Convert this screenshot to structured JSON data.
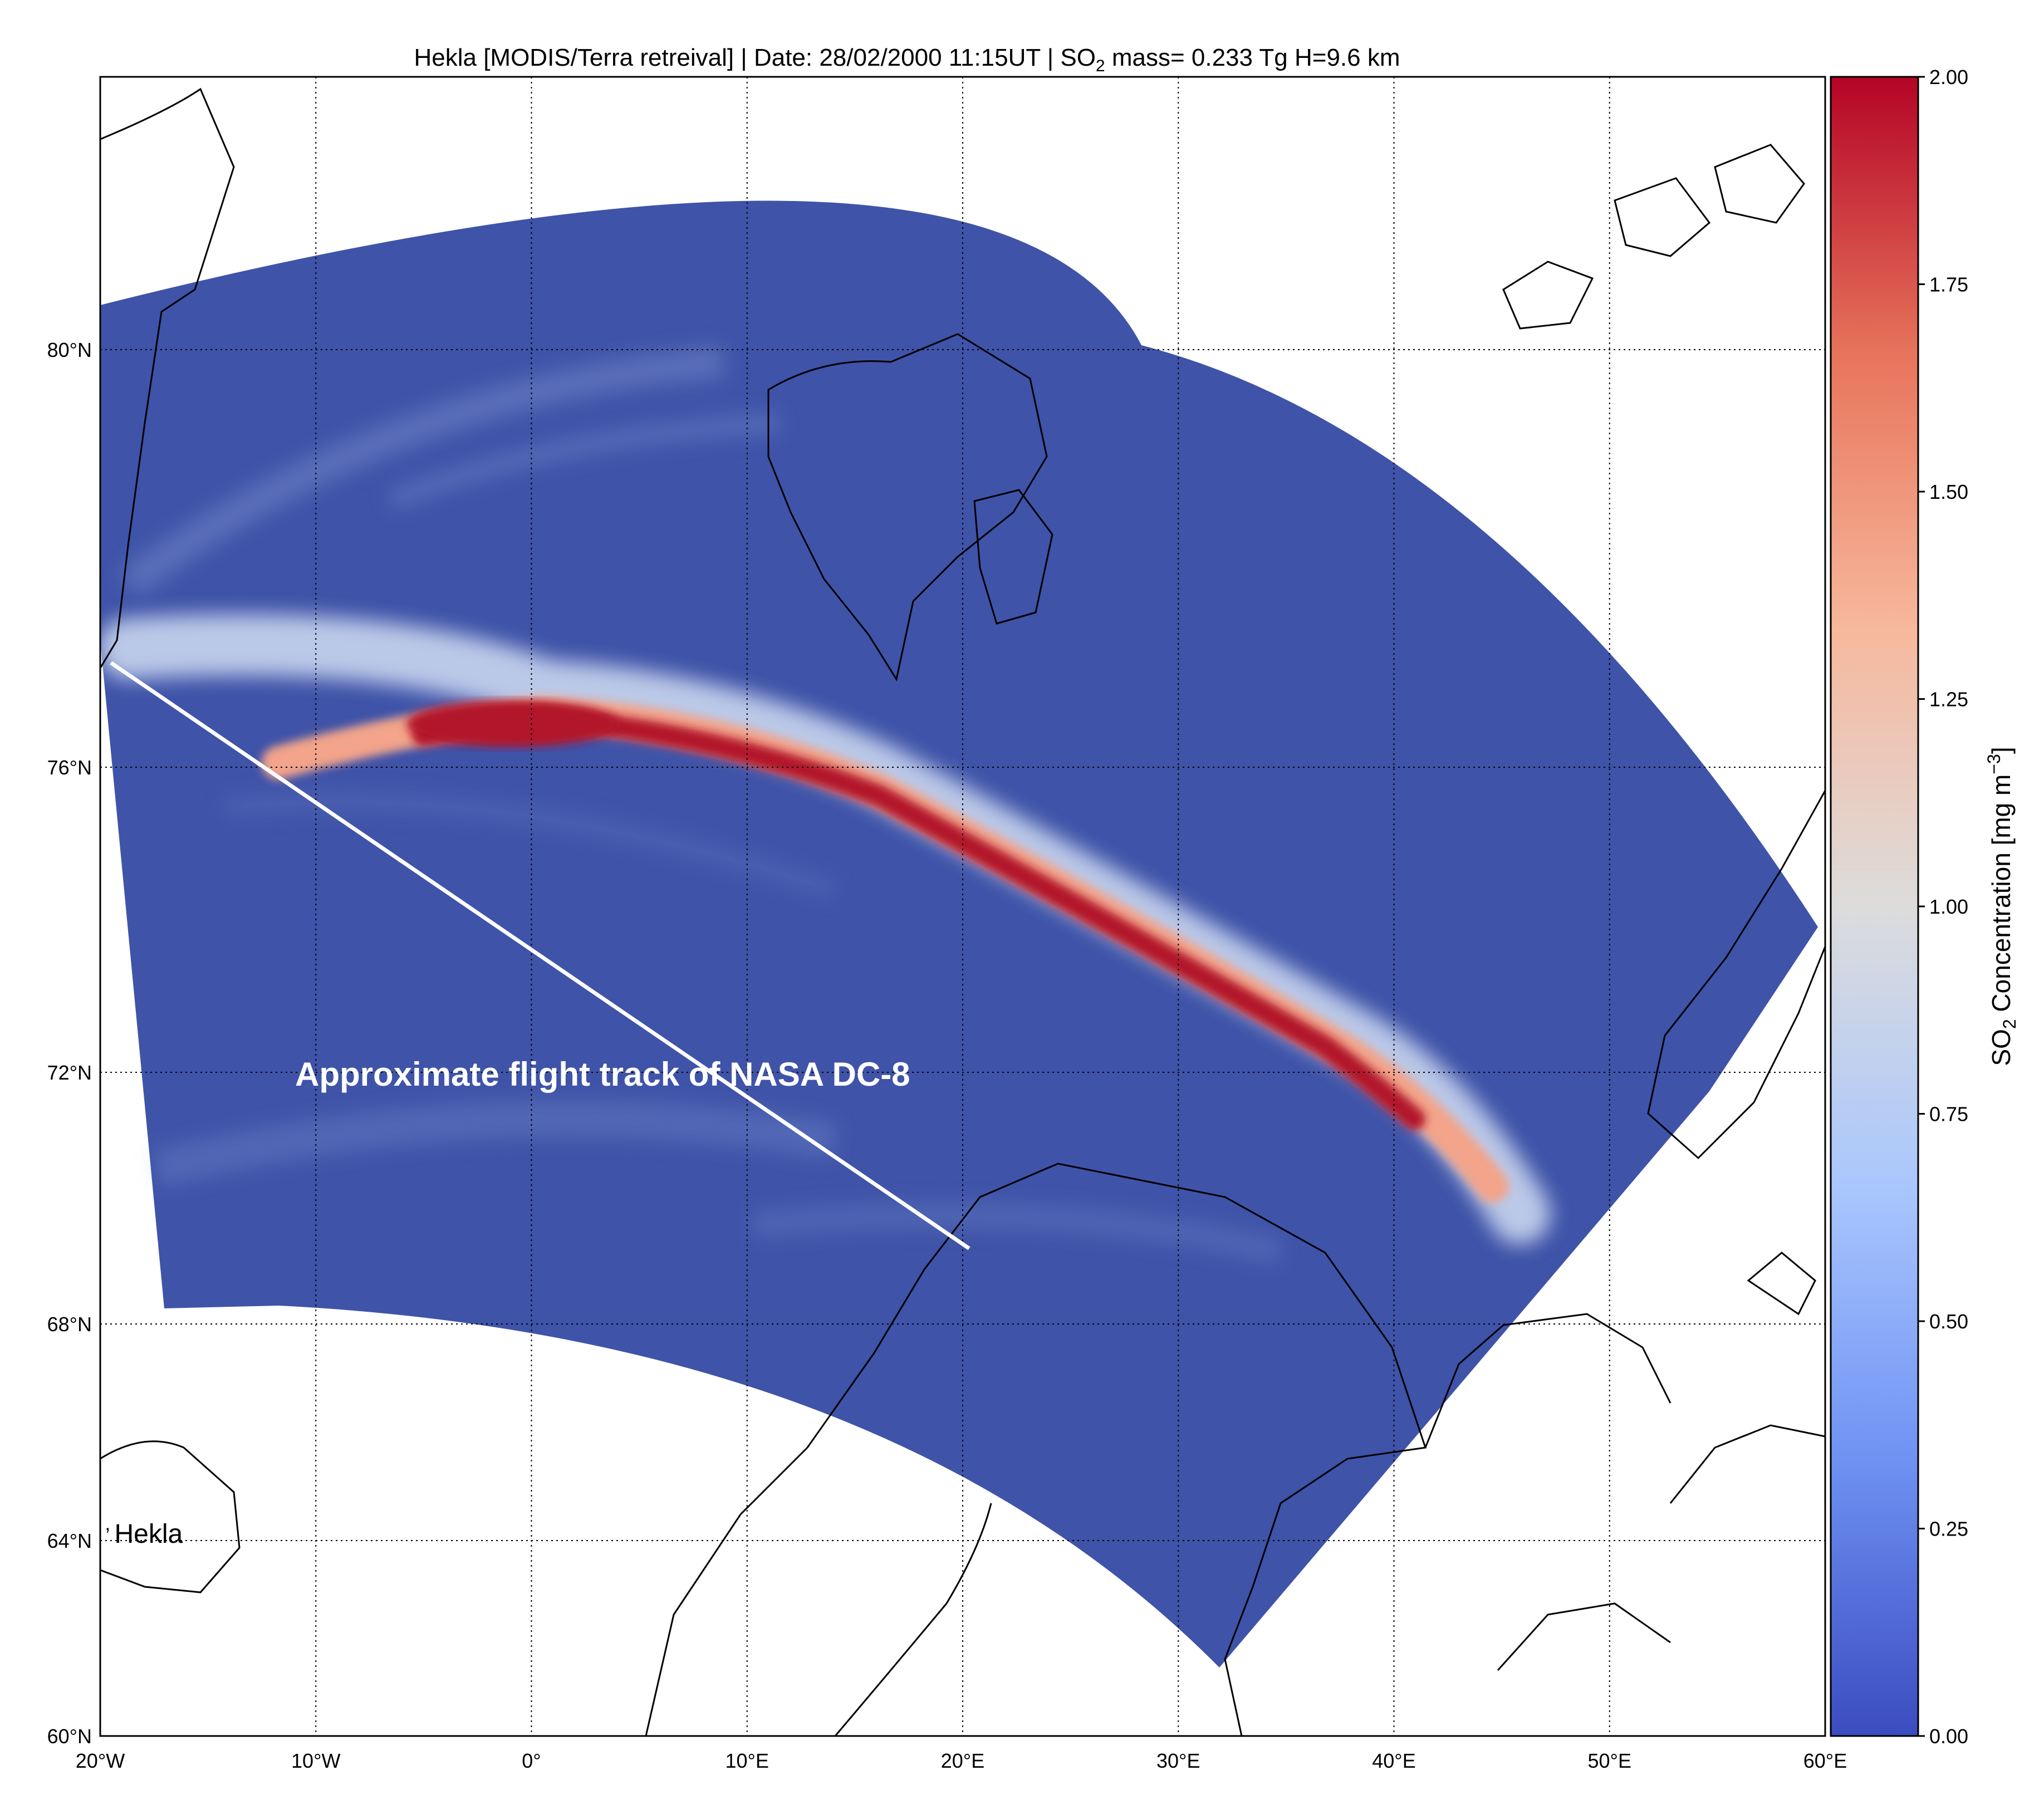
{
  "title": {
    "part1": "Hekla [MODIS/Terra retreival]   |   Date: 28/02/2000  11:15UT |  SO",
    "sub": "2",
    "part2": " mass= 0.233 Tg  H=9.6 km"
  },
  "map": {
    "lon_range": [
      -20,
      60
    ],
    "lat_range": [
      60,
      83
    ],
    "x_ticks": [
      {
        "value": -20,
        "label": "20°W"
      },
      {
        "value": -10,
        "label": "10°W"
      },
      {
        "value": 0,
        "label": "0°"
      },
      {
        "value": 10,
        "label": "10°E"
      },
      {
        "value": 20,
        "label": "20°E"
      },
      {
        "value": 30,
        "label": "30°E"
      },
      {
        "value": 40,
        "label": "40°E"
      },
      {
        "value": 50,
        "label": "50°E"
      },
      {
        "value": 60,
        "label": "60°E"
      }
    ],
    "y_ticks": [
      {
        "value": 60,
        "label": "60°N"
      },
      {
        "value": 64,
        "label": "64°N"
      },
      {
        "value": 68,
        "label": "68°N"
      },
      {
        "value": 72,
        "label": "72°N"
      },
      {
        "value": 76,
        "label": "76°N"
      },
      {
        "value": 80,
        "label": "80°N"
      }
    ],
    "grid": "dotted",
    "flight_track": {
      "label": "Approximate flight track of NASA DC-8",
      "start": {
        "lon": -19.5,
        "lat": 77.0
      },
      "end": {
        "lon": 20.3,
        "lat": 69.2
      },
      "color": "#ffffff"
    },
    "volcano": {
      "name": "Hekla",
      "lon": -19.6,
      "lat": 64.0
    }
  },
  "colorbar": {
    "label_pre": "SO",
    "label_sub": "2",
    "label_mid": " Concentration [mg m",
    "label_sup": "−3",
    "label_post": "]",
    "min": 0.0,
    "max": 2.0,
    "ticks": [
      "0.00",
      "0.25",
      "0.50",
      "0.75",
      "1.00",
      "1.25",
      "1.50",
      "1.75",
      "2.00"
    ],
    "colormap": "coolwarm",
    "colors": [
      "#3b4cc0",
      "#6f92f3",
      "#aac7fd",
      "#dddcdc",
      "#f7b89c",
      "#e7745b",
      "#b40426"
    ]
  },
  "colors": {
    "background_field": "#3f53a8",
    "plume_core": "#b2182b",
    "plume_edge": "#f4a582",
    "coastline": "#000000"
  }
}
